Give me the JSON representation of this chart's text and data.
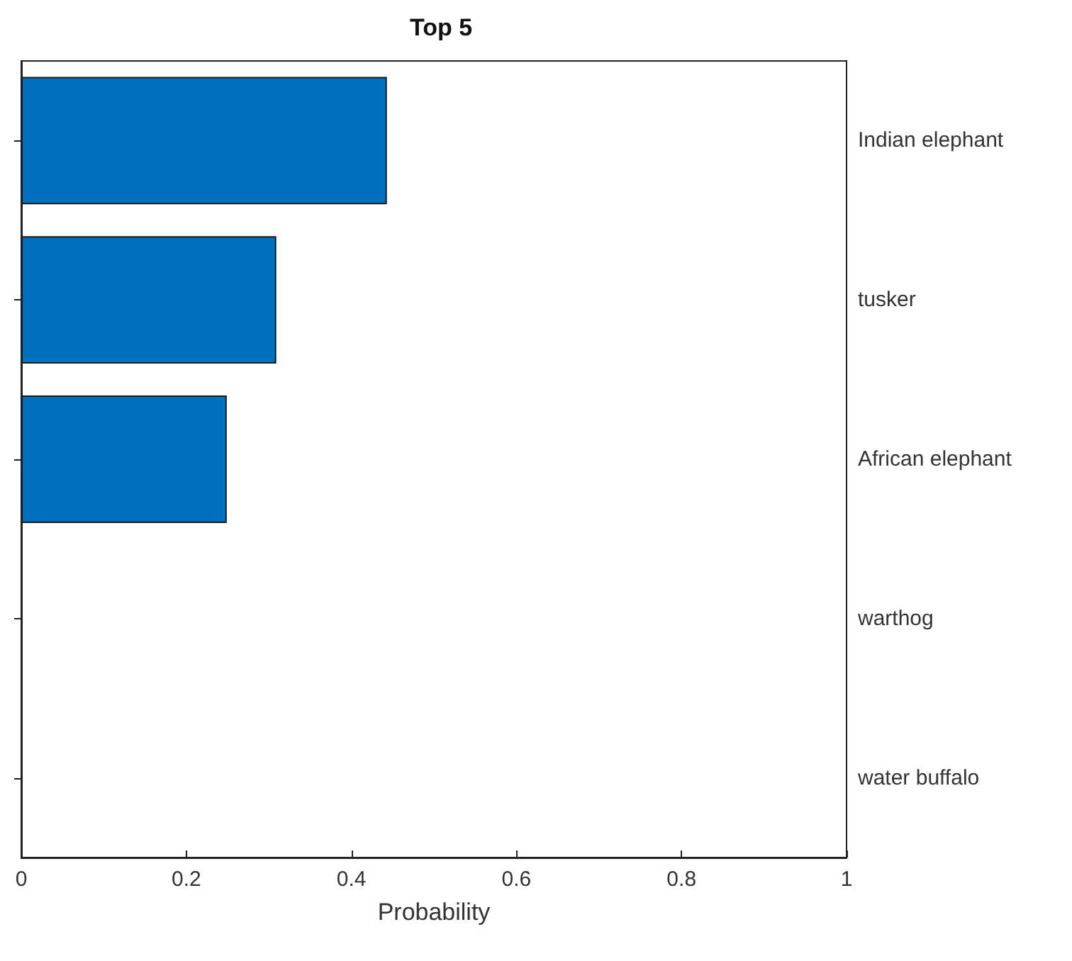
{
  "chart_data": {
    "type": "bar",
    "orientation": "horizontal",
    "title": "Top 5",
    "xlabel": "Probability",
    "categories": [
      "Indian elephant",
      "tusker",
      "African elephant",
      "warthog",
      "water buffalo"
    ],
    "values": [
      0.443,
      0.309,
      0.249,
      0,
      0
    ],
    "color": "#0072bd",
    "xlim": [
      0,
      1
    ],
    "xticks": [
      0,
      0.2,
      0.4,
      0.6,
      0.8,
      1
    ],
    "grid": false
  }
}
